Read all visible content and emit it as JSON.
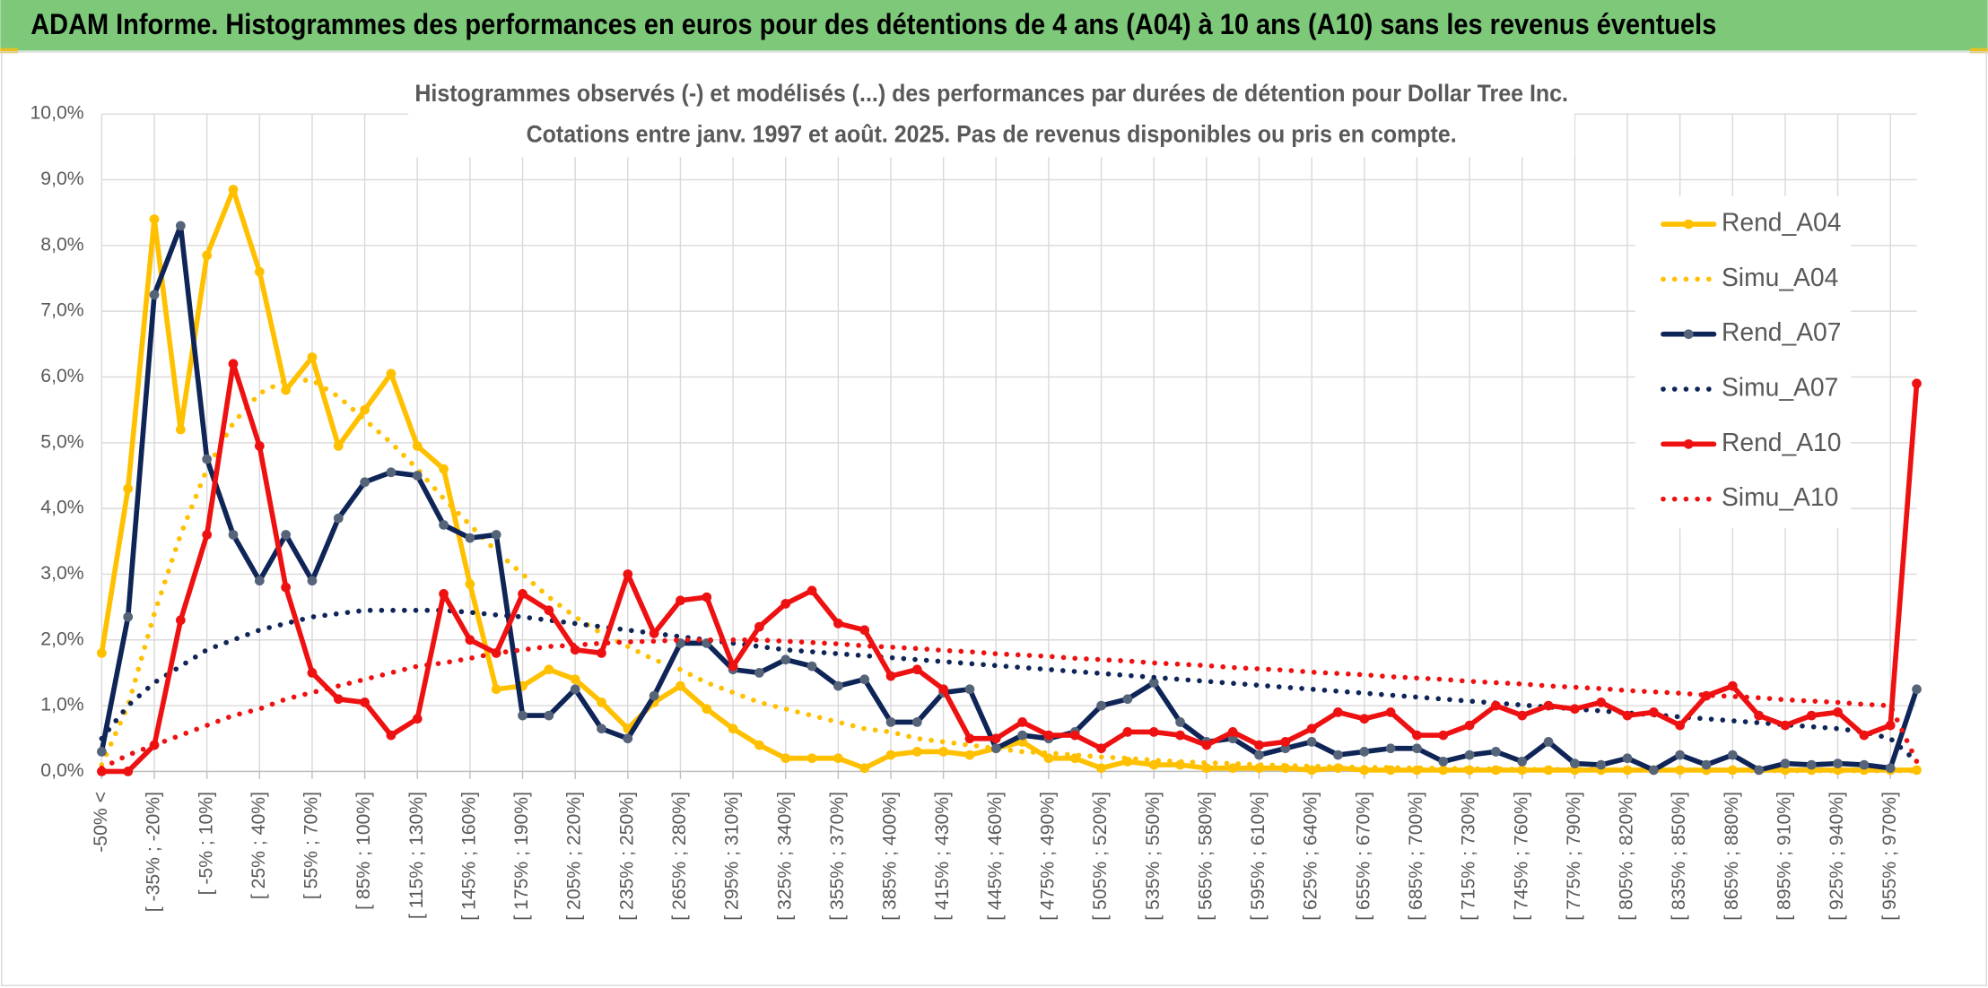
{
  "header": {
    "title": "ADAM Informe. Histogrammes des performances en euros pour des détentions de 4 ans (A04) à 10 ans (A10) sans les revenus éventuels"
  },
  "chart_data": {
    "type": "line",
    "title": "Histogrammes observés (-) et modélisés (...) des performances par durées de détention pour Dollar Tree Inc.",
    "subtitle": "Cotations entre janv. 1997 et août. 2025. Pas de revenus disponibles ou pris en compte.",
    "categories": [
      "-50% <",
      null,
      "[ -35% ; -20%]",
      null,
      "[ -5% ; 10%]",
      null,
      "[ 25% ; 40%]",
      null,
      "[ 55% ; 70%]",
      null,
      "[ 85% ; 100%]",
      null,
      "[ 115% ; 130%]",
      null,
      "[ 145% ; 160%]",
      null,
      "[ 175% ; 190%]",
      null,
      "[ 205% ; 220%]",
      null,
      "[ 235% ; 250%]",
      null,
      "[ 265% ; 280%]",
      null,
      "[ 295% ; 310%]",
      null,
      "[ 325% ; 340%]",
      null,
      "[ 355% ; 370%]",
      null,
      "[ 385% ; 400%]",
      null,
      "[ 415% ; 430%]",
      null,
      "[ 445% ; 460%]",
      null,
      "[ 475% ; 490%]",
      null,
      "[ 505% ; 520%]",
      null,
      "[ 535% ; 550%]",
      null,
      "[ 565% ; 580%]",
      null,
      "[ 595% ; 610%]",
      null,
      "[ 625% ; 640%]",
      null,
      "[ 655% ; 670%]",
      null,
      "[ 685% ; 700%]",
      null,
      "[ 715% ; 730%]",
      null,
      "[ 745% ; 760%]",
      null,
      "[ 775% ; 790%]",
      null,
      "[ 805% ; 820%]",
      null,
      "[ 835% ; 850%]",
      null,
      "[ 865% ; 880%]",
      null,
      "[ 895% ; 910%]",
      null,
      "[ 925% ; 940%]",
      null,
      "[ 955% ; 970%]",
      null
    ],
    "ylim": [
      0,
      10
    ],
    "yticks": [
      {
        "value": 0,
        "label": "0,0%"
      },
      {
        "value": 1,
        "label": "1,0%"
      },
      {
        "value": 2,
        "label": "2,0%"
      },
      {
        "value": 3,
        "label": "3,0%"
      },
      {
        "value": 4,
        "label": "4,0%"
      },
      {
        "value": 5,
        "label": "5,0%"
      },
      {
        "value": 6,
        "label": "6,0%"
      },
      {
        "value": 7,
        "label": "7,0%"
      },
      {
        "value": 8,
        "label": "8,0%"
      },
      {
        "value": 9,
        "label": "9,0%"
      },
      {
        "value": 10,
        "label": "10,0%"
      }
    ],
    "grid": true,
    "legend": "right",
    "series": [
      {
        "name": "Rend_A04",
        "color": "#ffc000",
        "line_style": "solid",
        "marker_color": "#ffc000",
        "values": [
          1.8,
          4.3,
          8.4,
          5.2,
          7.85,
          8.85,
          7.6,
          5.8,
          6.3,
          4.95,
          5.5,
          6.05,
          4.95,
          4.6,
          2.85,
          1.25,
          1.3,
          1.55,
          1.4,
          1.05,
          0.65,
          1.05,
          1.3,
          0.95,
          0.65,
          0.4,
          0.2,
          0.2,
          0.2,
          0.05,
          0.25,
          0.3,
          0.3,
          0.25,
          0.35,
          0.45,
          0.2,
          0.2,
          0.05,
          0.15,
          0.1,
          0.1,
          0.05,
          0.05,
          0.05,
          0.05,
          0.02,
          0.05,
          0.02,
          0.02,
          0.02,
          0.02,
          0.02,
          0.02,
          0.02,
          0.02,
          0.02,
          0.02,
          0.02,
          0.02,
          0.02,
          0.02,
          0.02,
          0.02,
          0.02,
          0.02,
          0.02,
          0.02,
          0.02,
          0.02
        ]
      },
      {
        "name": "Simu_A04",
        "color": "#ffc000",
        "line_style": "dotted",
        "values": [
          0.1,
          1.0,
          2.4,
          3.6,
          4.6,
          5.3,
          5.75,
          5.95,
          5.95,
          5.7,
          5.35,
          5.0,
          4.6,
          4.15,
          3.75,
          3.35,
          3.0,
          2.65,
          2.35,
          2.1,
          1.9,
          1.7,
          1.55,
          1.35,
          1.2,
          1.05,
          0.95,
          0.85,
          0.75,
          0.65,
          0.6,
          0.5,
          0.45,
          0.4,
          0.35,
          0.3,
          0.28,
          0.25,
          0.22,
          0.2,
          0.17,
          0.15,
          0.13,
          0.12,
          0.1,
          0.09,
          0.08,
          0.07,
          0.06,
          0.06,
          0.05,
          0.05,
          0.04,
          0.04,
          0.03,
          0.03,
          0.03,
          0.03,
          0.02,
          0.02,
          0.02,
          0.02,
          0.02,
          0.01,
          0.01,
          0.01,
          0.01,
          0.01,
          0.01,
          0.01
        ]
      },
      {
        "name": "Rend_A07",
        "color": "#0f2557",
        "line_style": "solid",
        "marker_color": "#56647a",
        "values": [
          0.3,
          2.35,
          7.25,
          8.3,
          4.75,
          3.6,
          2.9,
          3.6,
          2.9,
          3.85,
          4.4,
          4.55,
          4.5,
          3.75,
          3.55,
          3.6,
          0.85,
          0.85,
          1.25,
          0.65,
          0.5,
          1.15,
          1.95,
          1.95,
          1.55,
          1.5,
          1.7,
          1.6,
          1.3,
          1.4,
          0.75,
          0.75,
          1.2,
          1.25,
          0.35,
          0.55,
          0.5,
          0.6,
          1.0,
          1.1,
          1.35,
          0.75,
          0.45,
          0.5,
          0.25,
          0.35,
          0.45,
          0.25,
          0.3,
          0.35,
          0.35,
          0.15,
          0.25,
          0.3,
          0.15,
          0.45,
          0.12,
          0.1,
          0.2,
          0.02,
          0.25,
          0.1,
          0.25,
          0.02,
          0.12,
          0.1,
          0.12,
          0.1,
          0.05,
          1.25
        ]
      },
      {
        "name": "Simu_A07",
        "color": "#0f2557",
        "line_style": "dotted",
        "values": [
          0.5,
          1.0,
          1.35,
          1.6,
          1.85,
          2.0,
          2.15,
          2.25,
          2.35,
          2.4,
          2.45,
          2.45,
          2.45,
          2.45,
          2.42,
          2.38,
          2.35,
          2.3,
          2.25,
          2.2,
          2.15,
          2.1,
          2.05,
          2.0,
          1.95,
          1.9,
          1.85,
          1.82,
          1.79,
          1.76,
          1.73,
          1.7,
          1.67,
          1.64,
          1.61,
          1.58,
          1.55,
          1.52,
          1.49,
          1.46,
          1.43,
          1.4,
          1.37,
          1.34,
          1.31,
          1.28,
          1.25,
          1.22,
          1.19,
          1.16,
          1.13,
          1.1,
          1.07,
          1.04,
          1.01,
          0.98,
          0.95,
          0.92,
          0.89,
          0.86,
          0.83,
          0.8,
          0.77,
          0.74,
          0.71,
          0.68,
          0.65,
          0.6,
          0.5,
          0.15
        ]
      },
      {
        "name": "Rend_A10",
        "color": "#ee1111",
        "line_style": "solid",
        "marker_color": "#ee1111",
        "values": [
          0,
          0,
          0.4,
          2.3,
          3.6,
          6.2,
          4.95,
          2.8,
          1.5,
          1.1,
          1.05,
          0.55,
          0.8,
          2.7,
          2.0,
          1.8,
          2.7,
          2.45,
          1.85,
          1.8,
          3.0,
          2.1,
          2.6,
          2.65,
          1.6,
          2.2,
          2.55,
          2.75,
          2.25,
          2.15,
          1.45,
          1.55,
          1.25,
          0.5,
          0.5,
          0.75,
          0.55,
          0.55,
          0.35,
          0.6,
          0.6,
          0.55,
          0.4,
          0.6,
          0.4,
          0.45,
          0.65,
          0.9,
          0.8,
          0.9,
          0.55,
          0.55,
          0.7,
          1.0,
          0.85,
          1.0,
          0.95,
          1.05,
          0.85,
          0.9,
          0.7,
          1.15,
          1.3,
          0.85,
          0.7,
          0.85,
          0.9,
          0.55,
          0.7,
          5.9
        ]
      },
      {
        "name": "Simu_A10",
        "color": "#ee1111",
        "line_style": "dotted",
        "values": [
          0.05,
          0.25,
          0.4,
          0.55,
          0.7,
          0.85,
          0.95,
          1.1,
          1.2,
          1.3,
          1.4,
          1.5,
          1.6,
          1.65,
          1.72,
          1.8,
          1.85,
          1.9,
          1.92,
          1.95,
          1.97,
          1.98,
          2.0,
          2.0,
          2.0,
          2.0,
          1.98,
          1.96,
          1.94,
          1.91,
          1.89,
          1.87,
          1.84,
          1.82,
          1.79,
          1.77,
          1.75,
          1.72,
          1.7,
          1.68,
          1.65,
          1.63,
          1.61,
          1.58,
          1.56,
          1.54,
          1.51,
          1.49,
          1.47,
          1.44,
          1.42,
          1.4,
          1.37,
          1.35,
          1.33,
          1.3,
          1.28,
          1.26,
          1.23,
          1.21,
          1.19,
          1.16,
          1.14,
          1.12,
          1.09,
          1.07,
          1.05,
          1.02,
          1.0,
          0.15
        ]
      }
    ]
  }
}
